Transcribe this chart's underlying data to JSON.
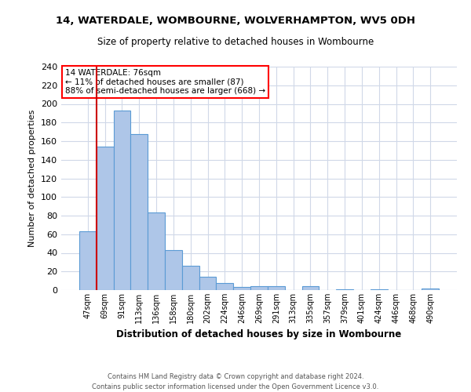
{
  "title1": "14, WATERDALE, WOMBOURNE, WOLVERHAMPTON, WV5 0DH",
  "title2": "Size of property relative to detached houses in Wombourne",
  "xlabel": "Distribution of detached houses by size in Wombourne",
  "ylabel": "Number of detached properties",
  "footer1": "Contains HM Land Registry data © Crown copyright and database right 2024.",
  "footer2": "Contains public sector information licensed under the Open Government Licence v3.0.",
  "annotation_line1": "14 WATERDALE: 76sqm",
  "annotation_line2": "← 11% of detached houses are smaller (87)",
  "annotation_line3": "88% of semi-detached houses are larger (668) →",
  "bar_labels": [
    "47sqm",
    "69sqm",
    "91sqm",
    "113sqm",
    "136sqm",
    "158sqm",
    "180sqm",
    "202sqm",
    "224sqm",
    "246sqm",
    "269sqm",
    "291sqm",
    "313sqm",
    "335sqm",
    "357sqm",
    "379sqm",
    "401sqm",
    "424sqm",
    "446sqm",
    "468sqm",
    "490sqm"
  ],
  "bar_values": [
    63,
    154,
    193,
    168,
    83,
    43,
    26,
    14,
    8,
    3,
    4,
    4,
    0,
    4,
    0,
    1,
    0,
    1,
    0,
    0,
    2
  ],
  "bar_color": "#aec6e8",
  "bar_edge_color": "#5b9bd5",
  "vline_color": "#cc0000",
  "grid_color": "#d0d8e8",
  "background_color": "#ffffff",
  "ylim": [
    0,
    240
  ],
  "yticks": [
    0,
    20,
    40,
    60,
    80,
    100,
    120,
    140,
    160,
    180,
    200,
    220,
    240
  ]
}
